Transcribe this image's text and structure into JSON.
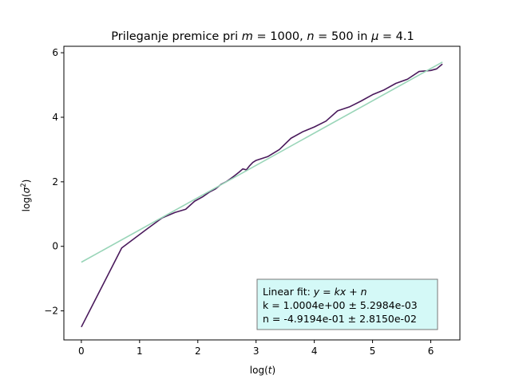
{
  "chart_data": {
    "type": "line",
    "title_parts": [
      "Prileganje premice pri ",
      "m",
      " = 1000, ",
      "n",
      " = 500 in ",
      "μ",
      " = 4.1"
    ],
    "xlabel_parts": [
      "log(",
      "t",
      ")"
    ],
    "ylabel_parts": [
      "log(",
      "σ",
      "2",
      ")"
    ],
    "xlim": [
      -0.3,
      6.5
    ],
    "ylim": [
      -2.9,
      6.2
    ],
    "xticks": [
      0,
      1,
      2,
      3,
      4,
      5,
      6
    ],
    "yticks": [
      -2,
      0,
      2,
      4,
      6
    ],
    "xtick_labels": [
      "0",
      "1",
      "2",
      "3",
      "4",
      "5",
      "6"
    ],
    "ytick_labels": [
      "−2",
      "0",
      "2",
      "4",
      "6"
    ],
    "series": [
      {
        "color": "#4a1a5c",
        "x": [
          0,
          0.693,
          1.099,
          1.386,
          1.609,
          1.792,
          1.946,
          2.079,
          2.197,
          2.303,
          2.398,
          2.485,
          2.565,
          2.639,
          2.708,
          2.773,
          2.833,
          2.89,
          2.944,
          2.996,
          3.2,
          3.4,
          3.6,
          3.8,
          4.0,
          4.2,
          4.4,
          4.6,
          4.8,
          5.0,
          5.2,
          5.4,
          5.6,
          5.8,
          6.0,
          6.1,
          6.2
        ],
        "y": [
          -2.5,
          -0.05,
          0.5,
          0.88,
          1.05,
          1.15,
          1.4,
          1.53,
          1.68,
          1.78,
          1.92,
          2.0,
          2.1,
          2.2,
          2.3,
          2.4,
          2.37,
          2.5,
          2.6,
          2.66,
          2.78,
          3.0,
          3.35,
          3.55,
          3.7,
          3.88,
          4.2,
          4.32,
          4.5,
          4.7,
          4.85,
          5.05,
          5.18,
          5.42,
          5.45,
          5.5,
          5.65
        ]
      },
      {
        "color": "#99d5b8",
        "x": [
          0,
          6.2
        ],
        "y": [
          -0.49194,
          5.71054
        ]
      }
    ],
    "annotation": {
      "line1_prefix": "Linear fit: ",
      "line1_math": "y = kx + n",
      "line2": "k = 1.0004e+00 ± 5.2984e-03",
      "line3": "n = -4.9194e-01 ± 2.8150e-02",
      "facecolor": "#d4f9f7"
    }
  }
}
